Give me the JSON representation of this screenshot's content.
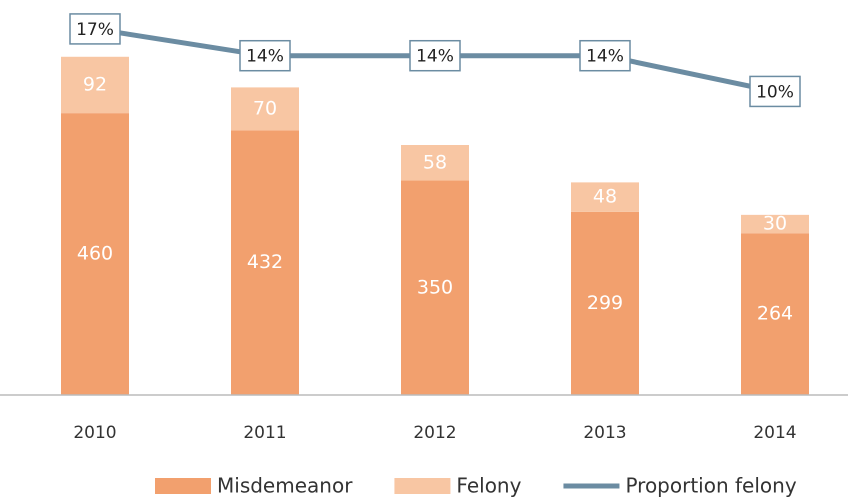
{
  "chart_data": {
    "type": "stacked_bar_line",
    "categories": [
      "2010",
      "2011",
      "2012",
      "2013",
      "2014"
    ],
    "series": [
      {
        "name": "Misdemeanor",
        "color": "#f2a06e",
        "values": [
          460,
          432,
          350,
          299,
          264
        ]
      },
      {
        "name": "Felony",
        "color": "#f8c6a3",
        "values": [
          92,
          70,
          58,
          48,
          30
        ]
      },
      {
        "name": "Proportion felony",
        "color": "#6b8ca2",
        "axis": "y2",
        "values": [
          17,
          14,
          14,
          14,
          10
        ],
        "value_labels": [
          "17%",
          "14%",
          "14%",
          "14%",
          "10%"
        ]
      }
    ],
    "ylim": [
      0,
      612
    ],
    "y2lim": [
      -24,
      18
    ],
    "legend": "bottom"
  }
}
